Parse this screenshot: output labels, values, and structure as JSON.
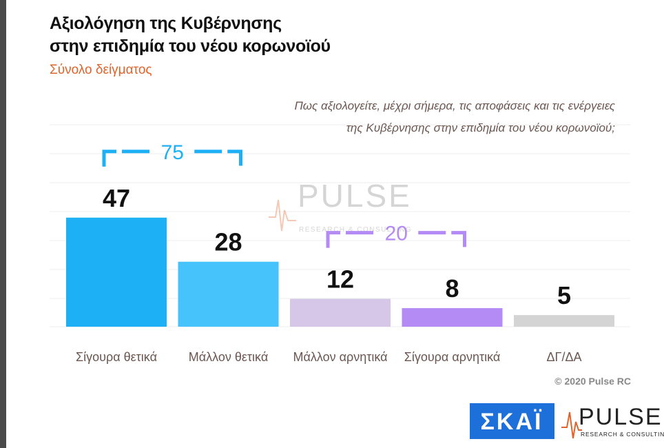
{
  "chart_data": {
    "type": "bar",
    "title": "Αξιολόγηση της Κυβέρνησης",
    "title_line2": "στην επιδημία του νέου κορωνοϊού",
    "subtitle": "Σύνολο δείγματος",
    "question": "Πως αξιολογείτε, μέχρι σήμερα, τις αποφάσεις και τις ενέργειες",
    "question_line2": "της Κυβέρνησης στην επιδημία του νέου κορωνοϊού;",
    "categories": [
      "Σίγουρα θετικά",
      "Μάλλον θετικά",
      "Μάλλον αρνητικά",
      "Σίγουρα αρνητικά",
      "ΔΓ/ΔΑ"
    ],
    "values": [
      47,
      28,
      12,
      8,
      5
    ],
    "colors": [
      "#1eb0f5",
      "#46c3fb",
      "#d6c6e8",
      "#b48af5",
      "#d4d4d4"
    ],
    "ylim": [
      0,
      60
    ],
    "brackets": [
      {
        "value": 75,
        "start": 0,
        "end": 1,
        "color": "#1eb0f5"
      },
      {
        "value": 20,
        "start": 2,
        "end": 3,
        "color": "#b48af5"
      }
    ],
    "copyright": "© 2020 Pulse RC",
    "logo_skai": "ΣΚΑΪ",
    "logo_pulse": "PULSE",
    "logo_pulse_sub": "RESEARCH & CONSULTING"
  }
}
